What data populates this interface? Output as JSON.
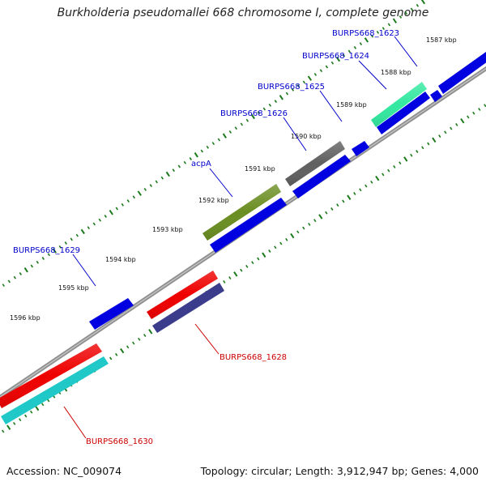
{
  "title": "Burkholderia pseudomallei 668 chromosome I, complete genome",
  "footer": {
    "accession": "Accession: NC_009074",
    "summary": "Topology: circular; Length: 3,912,947 bp; Genes: 4,000"
  },
  "scale": {
    "ticks": [
      "1587 kbp",
      "1588 kbp",
      "1589 kbp",
      "1590 kbp",
      "1591 kbp",
      "1592 kbp",
      "1593 kbp",
      "1594 kbp",
      "1595 kbp",
      "1596 kbp"
    ]
  },
  "colors": {
    "forward_label": "#0000cc",
    "reverse_label": "#cc0000",
    "blue": "#0000e0",
    "red": "#ee0000",
    "green": "#6b8e23",
    "gray": "#606060",
    "mint": "#33e8a0",
    "indigo": "#3c3c8c",
    "cyan": "#20c8c8",
    "tick": "#1a7a1a",
    "backbone": "#8a8a8a"
  },
  "genes": {
    "BURPS668_1623": "BURPS668_1623",
    "BURPS668_1624": "BURPS668_1624",
    "BURPS668_1625": "BURPS668_1625",
    "BURPS668_1626": "BURPS668_1626",
    "acpA": "acpA",
    "BURPS668_1628": "BURPS668_1628",
    "BURPS668_1629": "BURPS668_1629",
    "BURPS668_1630": "BURPS668_1630"
  }
}
